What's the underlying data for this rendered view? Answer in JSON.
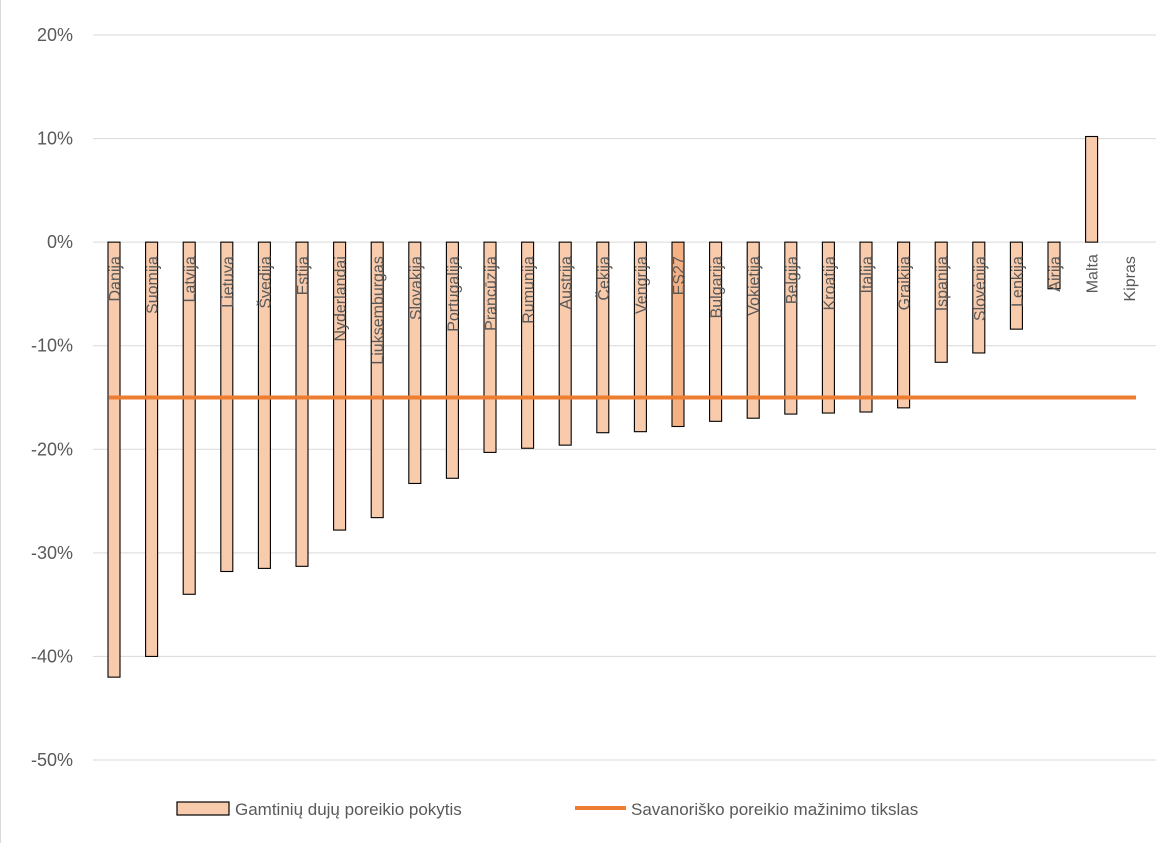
{
  "chart_data": {
    "type": "bar",
    "title": "",
    "xlabel": "",
    "ylabel": "",
    "ylim": [
      -0.5,
      0.2
    ],
    "yticks": [
      0.2,
      0.1,
      0,
      -0.1,
      -0.2,
      -0.3,
      -0.4,
      -0.5
    ],
    "ytick_labels": [
      "20%",
      "10%",
      "0%",
      "-10%",
      "-20%",
      "-30%",
      "-40%",
      "-50%"
    ],
    "grid": true,
    "legend_position": "bottom",
    "categories": [
      "Danija",
      "Suomija",
      "Latvija",
      "Lietuva",
      "Švedija",
      "Estija",
      "Nyderlandai",
      "Liuksemburgas",
      "Slovakija",
      "Portugalija",
      "Prancūzija",
      "Rumunija",
      "Austrija",
      "Čekija",
      "Vengrija",
      "ES27",
      "Bulgarija",
      "Vokietija",
      "Belgija",
      "Kroatija",
      "Italija",
      "Graikija",
      "Ispanija",
      "Slovėnija",
      "Lenkija",
      "Airija",
      "Malta",
      "Kipras"
    ],
    "series": [
      {
        "name": "Gamtinių dujų poreikio pokytis",
        "color": "#f8cbad",
        "highlight_color": "#f4b183",
        "highlight_category": "ES27",
        "values": [
          -0.42,
          -0.4,
          -0.34,
          -0.318,
          -0.315,
          -0.313,
          -0.278,
          -0.266,
          -0.233,
          -0.228,
          -0.203,
          -0.199,
          -0.196,
          -0.184,
          -0.183,
          -0.178,
          -0.173,
          -0.17,
          -0.166,
          -0.165,
          -0.164,
          -0.16,
          -0.116,
          -0.107,
          -0.084,
          -0.045,
          0.102,
          0
        ]
      },
      {
        "name": "Savanoriško poreikio mažinimo tikslas",
        "type": "line",
        "color": "#ed7d31",
        "value": -0.15
      }
    ]
  }
}
